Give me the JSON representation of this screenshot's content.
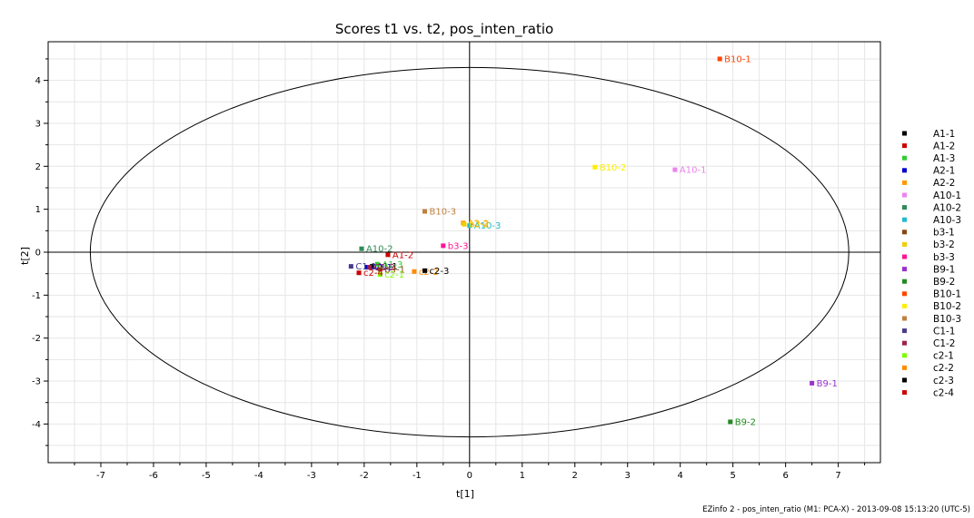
{
  "chart_data": {
    "type": "scatter",
    "title": "Scores t1 vs. t2, pos_inten_ratio",
    "xlabel": "t[1]",
    "ylabel": "t[2]",
    "xlim": [
      -8,
      7.8
    ],
    "ylim": [
      -4.9,
      4.9
    ],
    "xticks": [
      -7,
      -6,
      -5,
      -4,
      -3,
      -2,
      -1,
      0,
      1,
      2,
      3,
      4,
      5,
      6,
      7
    ],
    "yticks": [
      -4,
      -3,
      -2,
      -1,
      0,
      1,
      2,
      3,
      4
    ],
    "grid": true,
    "legend_position": "right",
    "ellipse": {
      "rx": 7.2,
      "ry": 4.3
    },
    "points": [
      {
        "name": "A1-1",
        "x": -1.85,
        "y": -0.33,
        "color": "#000000"
      },
      {
        "name": "A1-2",
        "x": -1.55,
        "y": -0.06,
        "color": "#cc0000"
      },
      {
        "name": "A1-3",
        "x": -1.75,
        "y": -0.28,
        "color": "#33cc33"
      },
      {
        "name": "A2-1",
        "x": -1.95,
        "y": -0.35,
        "color": "#0000cc"
      },
      {
        "name": "A2-2",
        "x": -0.12,
        "y": 0.68,
        "color": "#ff9900"
      },
      {
        "name": "A10-1",
        "x": 3.9,
        "y": 1.92,
        "color": "#ee82ee"
      },
      {
        "name": "A10-2",
        "x": -2.05,
        "y": 0.08,
        "color": "#2e8b57"
      },
      {
        "name": "A10-3",
        "x": 0.0,
        "y": 0.62,
        "color": "#22bbcc"
      },
      {
        "name": "b3-1",
        "x": -1.7,
        "y": -0.4,
        "color": "#8b4513"
      },
      {
        "name": "b3-2",
        "x": -0.1,
        "y": 0.65,
        "color": "#f0d000"
      },
      {
        "name": "b3-3",
        "x": -0.5,
        "y": 0.15,
        "color": "#ff1493"
      },
      {
        "name": "B9-1",
        "x": 6.5,
        "y": -3.05,
        "color": "#9932cc"
      },
      {
        "name": "B9-2",
        "x": 4.95,
        "y": -3.95,
        "color": "#228b22"
      },
      {
        "name": "B10-1",
        "x": 4.75,
        "y": 4.5,
        "color": "#ff4500"
      },
      {
        "name": "B10-2",
        "x": 2.38,
        "y": 1.98,
        "color": "#ffee00"
      },
      {
        "name": "B10-3",
        "x": -0.85,
        "y": 0.95,
        "color": "#c08040"
      },
      {
        "name": "C1-1",
        "x": -2.25,
        "y": -0.33,
        "color": "#483d8b"
      },
      {
        "name": "C1-2",
        "x": -1.9,
        "y": -0.35,
        "color": "#a0224a"
      },
      {
        "name": "c2-1",
        "x": -1.7,
        "y": -0.52,
        "color": "#7cfc00"
      },
      {
        "name": "c2-2",
        "x": -1.05,
        "y": -0.45,
        "color": "#ff8c00"
      },
      {
        "name": "c2-3",
        "x": -0.85,
        "y": -0.43,
        "color": "#000000"
      },
      {
        "name": "c2-4",
        "x": -2.1,
        "y": -0.48,
        "color": "#cc0000"
      }
    ]
  },
  "footer": "EZinfo 2 - pos_inten_ratio (M1: PCA-X) - 2013-09-08 15:13:20 (UTC-5)"
}
